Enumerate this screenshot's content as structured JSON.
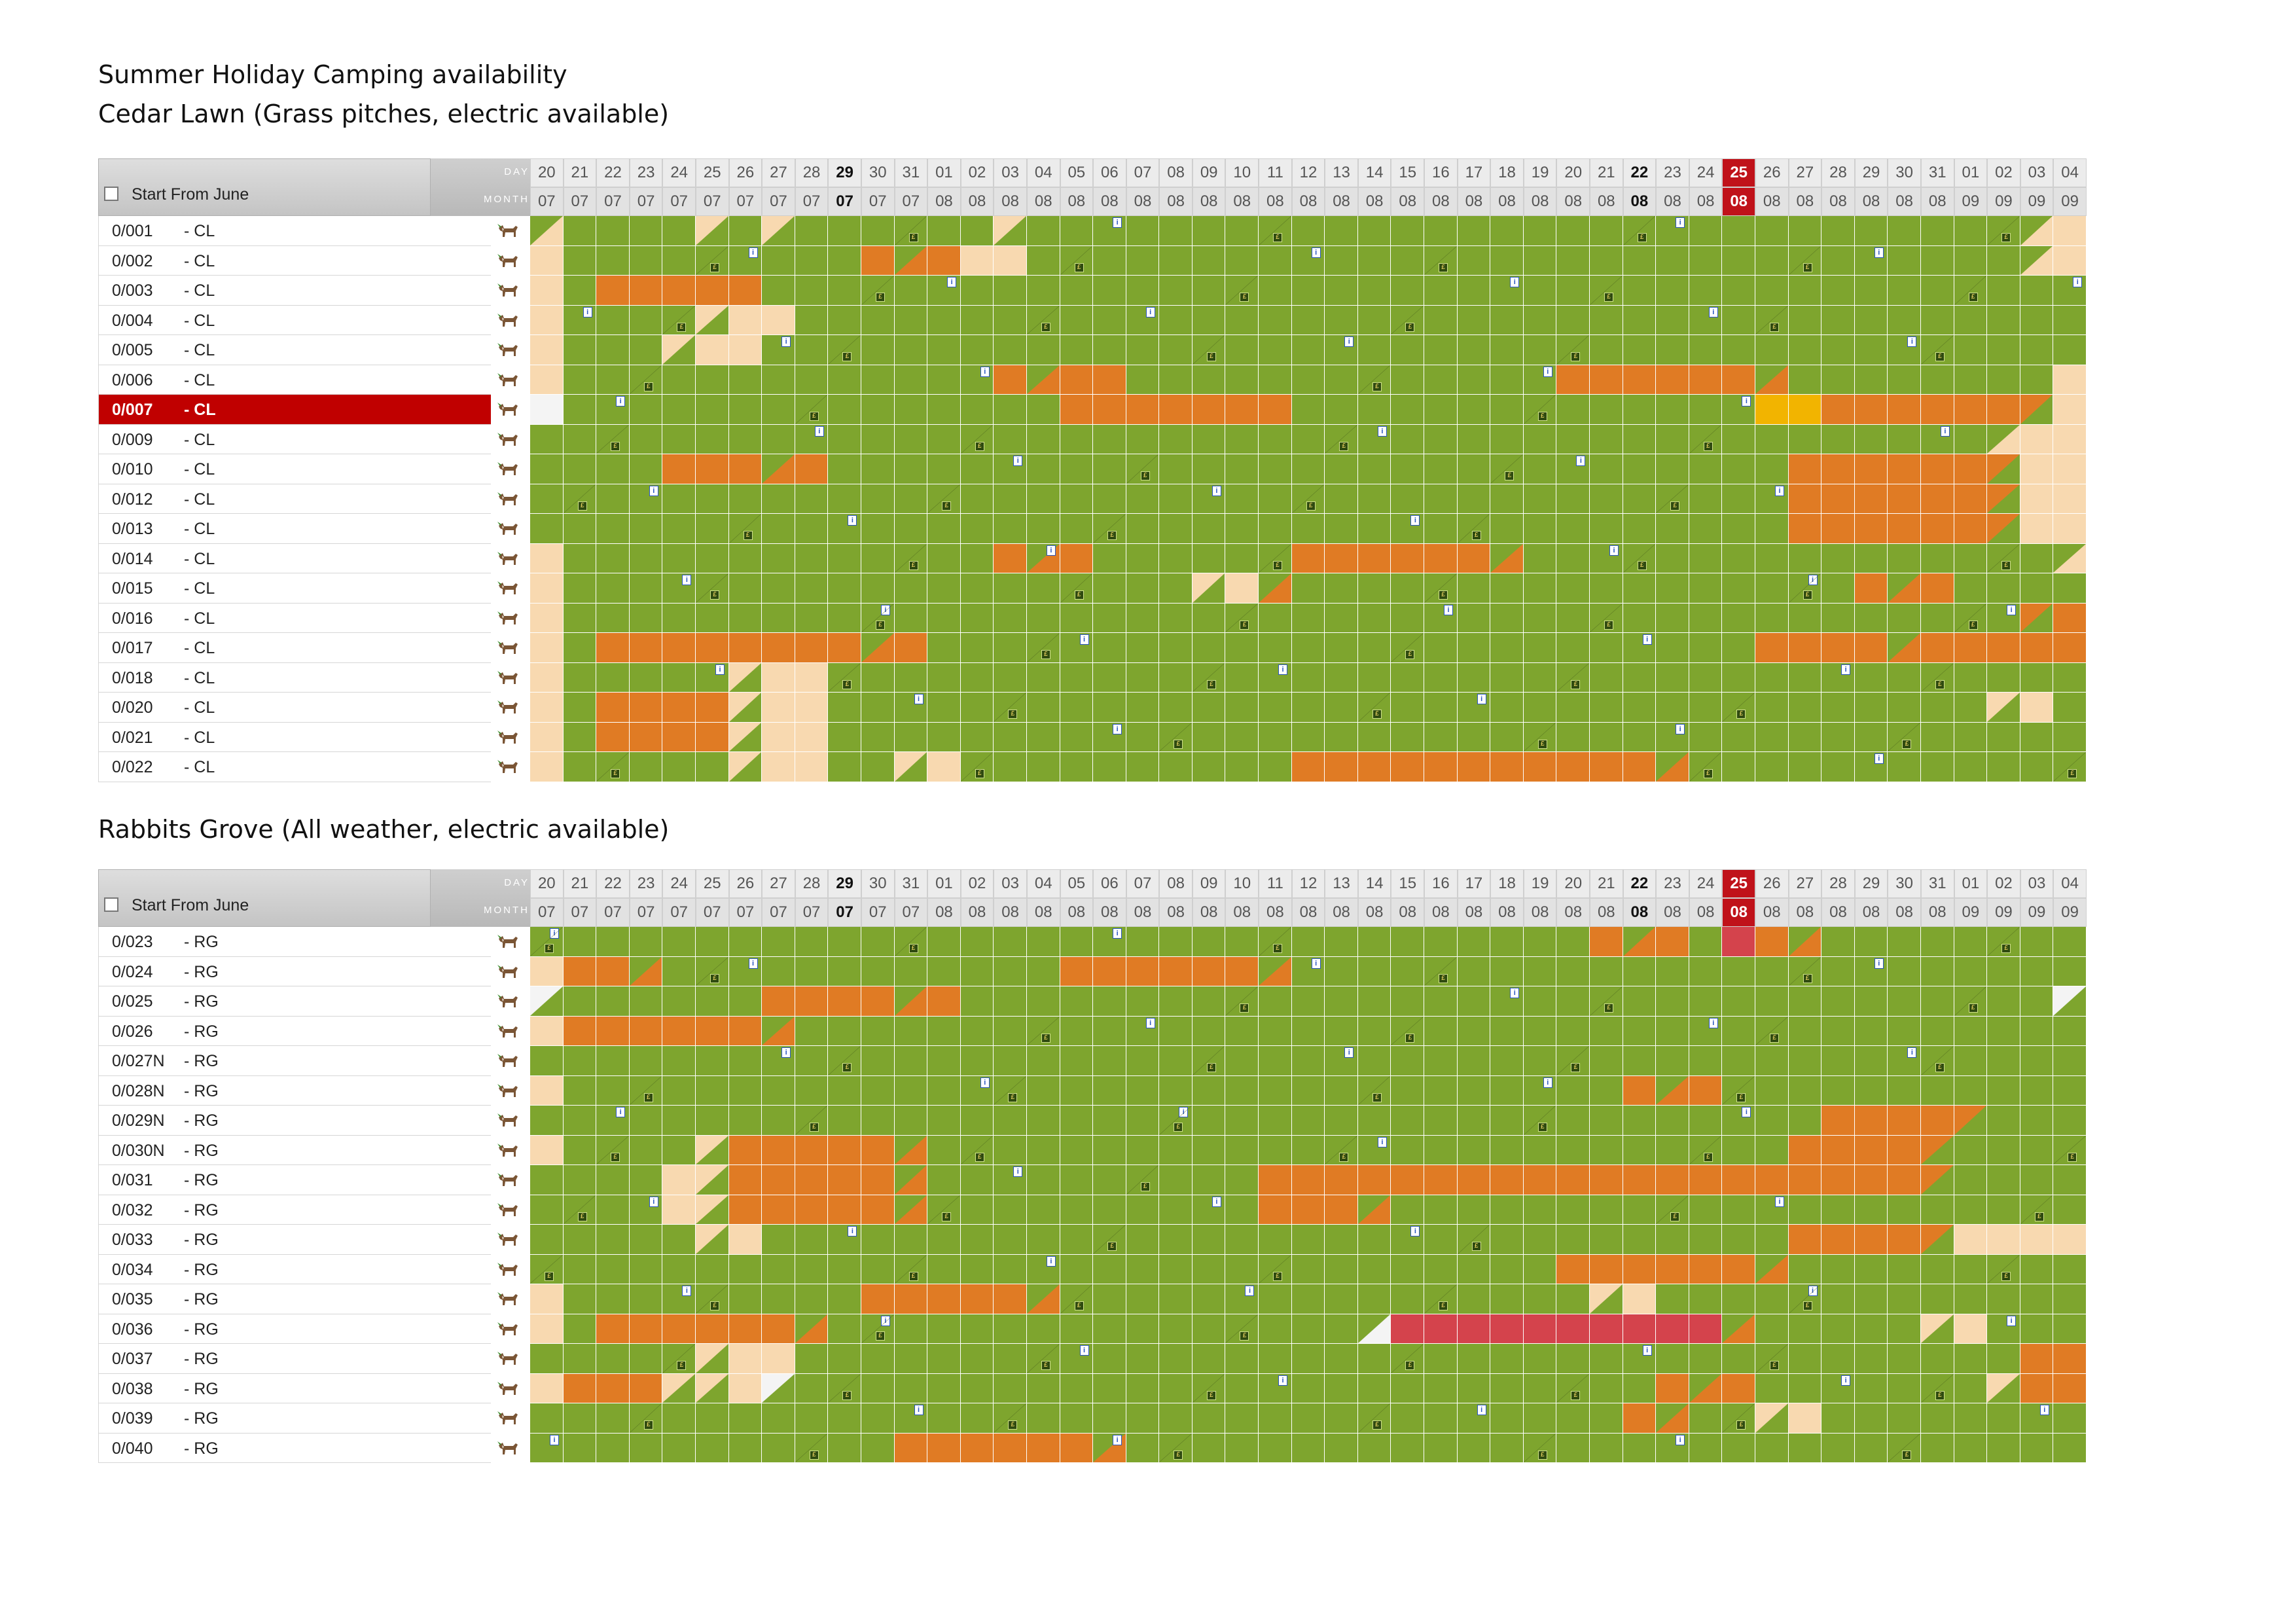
{
  "document": {
    "title": "Summer Holiday Camping availability"
  },
  "header": {
    "start_label": "Start From June",
    "day_key": "DAY",
    "month_key": "MONTH",
    "days": [
      "20",
      "21",
      "22",
      "23",
      "24",
      "25",
      "26",
      "27",
      "28",
      "29",
      "30",
      "31",
      "01",
      "02",
      "03",
      "04",
      "05",
      "06",
      "07",
      "08",
      "09",
      "10",
      "11",
      "12",
      "13",
      "14",
      "15",
      "16",
      "17",
      "18",
      "19",
      "20",
      "21",
      "22",
      "23",
      "24",
      "25",
      "26",
      "27",
      "28",
      "29",
      "30",
      "31",
      "01",
      "02",
      "03",
      "04"
    ],
    "months": [
      "07",
      "07",
      "07",
      "07",
      "07",
      "07",
      "07",
      "07",
      "07",
      "07",
      "07",
      "07",
      "08",
      "08",
      "08",
      "08",
      "08",
      "08",
      "08",
      "08",
      "08",
      "08",
      "08",
      "08",
      "08",
      "08",
      "08",
      "08",
      "08",
      "08",
      "08",
      "08",
      "08",
      "08",
      "08",
      "08",
      "08",
      "08",
      "08",
      "08",
      "08",
      "08",
      "08",
      "09",
      "09",
      "09",
      "09"
    ],
    "bold_columns": [
      9,
      33
    ],
    "today_column": 36
  },
  "legend_colors": {
    "available": "#7ea52e",
    "booked": "#e07b24",
    "unavailable": "#f8d9b0",
    "selected_booking": "#f2b400",
    "blocked": "#d4434c",
    "selected_row": "#c00000",
    "today": "#c0121a"
  },
  "sections": [
    {
      "title": "Cedar Lawn (Grass pitches, electric available)",
      "rows": [
        {
          "pitch": "0/001",
          "zone": "- CL",
          "cells": "TggggtgtggggggtggggggggggggggggggggggggggggggTpp"
        },
        {
          "pitch": "0/002",
          "zone": "- CL",
          "cells": "pgggggggggouoppggggggggggggggggggggggggggggggTpp"
        },
        {
          "pitch": "0/003",
          "zone": "- CL",
          "cells": "pgoooooggggggggggggggggggggggggggggggggggggggggg"
        },
        {
          "pitch": "0/004",
          "zone": "- CL",
          "cells": "pggggtppgggggggggggggggggggggggggggggggggggggggg"
        },
        {
          "pitch": "0/005",
          "zone": "- CL",
          "cells": "pgggtppggggggggggggggggggggggggggggggggggggggggg"
        },
        {
          "pitch": "0/006",
          "zone": "- CL",
          "cells": "pgggggggggggggouoogggggggggggggoooooouggggggggpp"
        },
        {
          "pitch": "0/007",
          "zone": "- CL",
          "cells": "wgggggggggggggggoooooooggggggggggggggyyoooooovpp",
          "selected": true
        },
        {
          "pitch": "0/009",
          "zone": "- CL",
          "cells": "ggggggggggggggggggggggggggggggggggggggggggggTpp"
        },
        {
          "pitch": "0/010",
          "zone": "- CL",
          "cells": "ggggooouogggggggggggggggggggggggggggggoooooovpp"
        },
        {
          "pitch": "0/012",
          "zone": "- CL",
          "cells": "ggggggggggggggggggggggggggggggggggggggoooooovpp"
        },
        {
          "pitch": "0/013",
          "zone": "- CL",
          "cells": "ggggggggggggggggggggggggggggggggggggggoooooovpp"
        },
        {
          "pitch": "0/014",
          "zone": "- CL",
          "cells": "pgggggggggggggouoggggggoooooouggggggggggggggggTpp"
        },
        {
          "pitch": "0/015",
          "zone": "- CL",
          "cells": "pgggggggggggggggggggtpugggggggggggggggggouoggggggTp"
        },
        {
          "pitch": "0/016",
          "zone": "- CL",
          "cells": "pggggggggggggggggggggggggggggggggggggggggggggvopp"
        },
        {
          "pitch": "0/017",
          "zone": "- CL",
          "cells": "pgoooooooouogggggggggggggggggggggggggoooouooooovpp"
        },
        {
          "pitch": "0/018",
          "zone": "- CL",
          "cells": "pgggggtppgggggggggggggggggggggggggggggggggggggggTpp"
        },
        {
          "pitch": "0/020",
          "zone": "- CL",
          "cells": "pgooootppgggggggggggggggggggggggggggggggggggtpggTpp"
        },
        {
          "pitch": "0/021",
          "zone": "- CL",
          "cells": "pgooootppgggggggggggggggggggggggggggggggggggggggTpp"
        },
        {
          "pitch": "0/022",
          "zone": "- CL",
          "cells": "pgggggtppggtpggggggggggooooooooooouggggggggggggggpp"
        }
      ]
    },
    {
      "title": "Rabbits Grove (All weather, electric available)",
      "rows": [
        {
          "pitch": "0/023",
          "zone": "- RG",
          "cells": "ggggggggggggggggggggggggggggggggouogrougggggggggww"
        },
        {
          "pitch": "0/024",
          "zone": "- RG",
          "cells": "poouggggggggggggoooooouggggggggggggggggggggggggggTww"
        },
        {
          "pitch": "0/025",
          "zone": "- RG",
          "cells": "xggggggoooouogggggggggggggggggggggggggggggggggxpppp"
        },
        {
          "pitch": "0/026",
          "zone": "- RG",
          "cells": "poooooouggggggggggggggggggggggggggggggggggggggggpppp"
        },
        {
          "pitch": "0/027N",
          "zone": "- RG",
          "cells": "gggggggggggggggggggggggggggggggggggggggggggggggTppp"
        },
        {
          "pitch": "0/028N",
          "zone": "- RG",
          "cells": "pggggggggggggggggggggggggggggggggouogggggggggggggggpp"
        },
        {
          "pitch": "0/029N",
          "zone": "- RG",
          "cells": "gggggggggggggggggggggggggggggggggggggggoooovgggggTpp"
        },
        {
          "pitch": "0/030N",
          "zone": "- RG",
          "cells": "pggggtooooouggggggggggggggggggggggggggoooovgggggTppp"
        },
        {
          "pitch": "0/031",
          "zone": "- RG",
          "cells": "ggggptooooouggggggggggoooooooooooooooooooovgggggggg"
        },
        {
          "pitch": "0/032",
          "zone": "- RG",
          "cells": "ggggptooooouggggggggggooouggggggggggggggggggggggTpp"
        },
        {
          "pitch": "0/033",
          "zone": "- RG",
          "cells": "gggggtpgggggggggggggggggggggggggggggggoooovpppppppp"
        },
        {
          "pitch": "0/034",
          "zone": "- RG",
          "cells": "gggggggggggggggggggggggggggggggoooooouggggggggggTpp"
        },
        {
          "pitch": "0/035",
          "zone": "- RG",
          "cells": "pgggggggggooooouggggggggggggggggtpgggggggggggggggTpp"
        },
        {
          "pitch": "0/036",
          "zone": "- RG",
          "cells": "pgoooooouggggggggggggggggzrrrrrrrrrrugggggtpgggggTpp"
        },
        {
          "pitch": "0/037",
          "zone": "- RG",
          "cells": "gggggtppgggggggggggggggggggggggggggggggggggggoooovpp"
        },
        {
          "pitch": "0/038",
          "zone": "- RG",
          "cells": "pooottpxggggggggggggggggggggggggggouogggggggtooooovpp"
        },
        {
          "pitch": "0/039",
          "zone": "- RG",
          "cells": "gggggggggggggggggggggggggggggggggouggtpgggggggggTpp"
        },
        {
          "pitch": "0/040",
          "zone": "- RG",
          "cells": "gggggggggggoooooouggggggggggggggggggggggggggggggggg"
        }
      ]
    }
  ]
}
